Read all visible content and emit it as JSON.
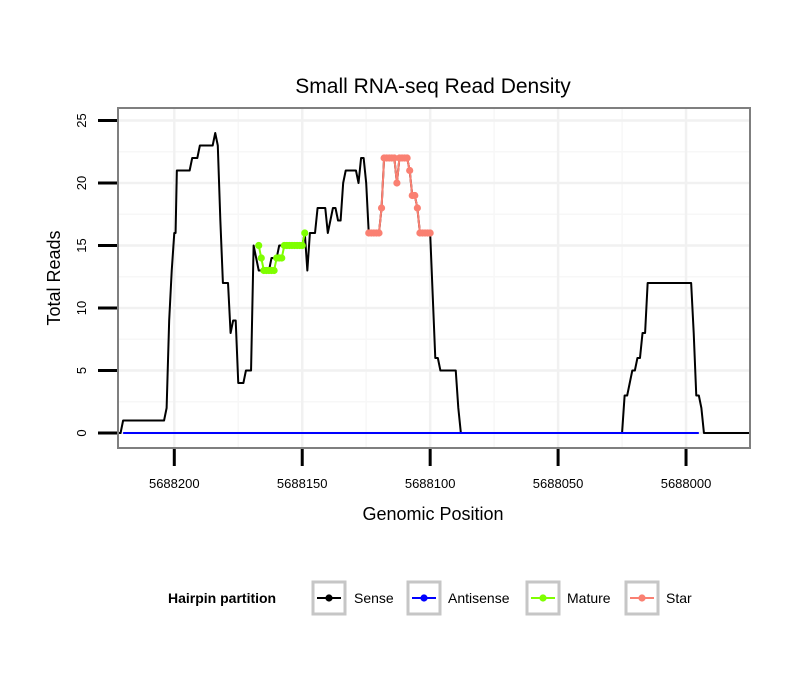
{
  "chart_data": {
    "type": "line",
    "title": "Small RNA-seq Read Density",
    "xlabel": "Genomic Position",
    "ylabel": "Total Reads",
    "x_reversed": true,
    "xlim": [
      5688222,
      5687975
    ],
    "ylim": [
      -1.2,
      26.0
    ],
    "x_ticks": [
      5688200,
      5688150,
      5688100,
      5688050,
      5688000
    ],
    "x_tick_labels": [
      "5688200",
      "5688150",
      "5688100",
      "5688050",
      "5688000"
    ],
    "y_ticks": [
      0,
      5,
      10,
      15,
      20,
      25
    ],
    "y_tick_labels": [
      "0",
      "5",
      "10",
      "15",
      "20",
      "25"
    ],
    "legend_title": "Hairpin partition",
    "legend_position": "bottom",
    "series": [
      {
        "name": "Sense",
        "color": "#000000",
        "markers": false,
        "points": [
          [
            5688225,
            0
          ],
          [
            5688221,
            0
          ],
          [
            5688220,
            1
          ],
          [
            5688204,
            1
          ],
          [
            5688203,
            2
          ],
          [
            5688202,
            9
          ],
          [
            5688201,
            13
          ],
          [
            5688200,
            16
          ],
          [
            5688199.5,
            16
          ],
          [
            5688199,
            21
          ],
          [
            5688194,
            21
          ],
          [
            5688193,
            22
          ],
          [
            5688191,
            22
          ],
          [
            5688190,
            23
          ],
          [
            5688185,
            23
          ],
          [
            5688184,
            24
          ],
          [
            5688183,
            23
          ],
          [
            5688182,
            17
          ],
          [
            5688181,
            12
          ],
          [
            5688179,
            12
          ],
          [
            5688178,
            8
          ],
          [
            5688177,
            9
          ],
          [
            5688176,
            9
          ],
          [
            5688175,
            4
          ],
          [
            5688173,
            4
          ],
          [
            5688172,
            5
          ],
          [
            5688170,
            5
          ],
          [
            5688169,
            15
          ],
          [
            5688168,
            14
          ],
          [
            5688167,
            13
          ],
          [
            5688163,
            13
          ],
          [
            5688162,
            14
          ],
          [
            5688160,
            14
          ],
          [
            5688159,
            15
          ],
          [
            5688150,
            15
          ],
          [
            5688149,
            16
          ],
          [
            5688148,
            13
          ],
          [
            5688147,
            16
          ],
          [
            5688145,
            16
          ],
          [
            5688144,
            18
          ],
          [
            5688141,
            18
          ],
          [
            5688140,
            16
          ],
          [
            5688139,
            17
          ],
          [
            5688138,
            18
          ],
          [
            5688137,
            18
          ],
          [
            5688136,
            17
          ],
          [
            5688135,
            17
          ],
          [
            5688134,
            20
          ],
          [
            5688133,
            21
          ],
          [
            5688129,
            21
          ],
          [
            5688128,
            20
          ],
          [
            5688127,
            22
          ],
          [
            5688126,
            22
          ],
          [
            5688125,
            20
          ],
          [
            5688124,
            16
          ],
          [
            5688120,
            16
          ],
          [
            5688119,
            18
          ],
          [
            5688118,
            22
          ],
          [
            5688114,
            22
          ],
          [
            5688113,
            20
          ],
          [
            5688112,
            22
          ],
          [
            5688109,
            22
          ],
          [
            5688108,
            21
          ],
          [
            5688107,
            19
          ],
          [
            5688106,
            19
          ],
          [
            5688105,
            18
          ],
          [
            5688104,
            16
          ],
          [
            5688100,
            16
          ],
          [
            5688099,
            11
          ],
          [
            5688098,
            6
          ],
          [
            5688097,
            6
          ],
          [
            5688096,
            5
          ],
          [
            5688090,
            5
          ],
          [
            5688089,
            2
          ],
          [
            5688088,
            0
          ],
          [
            5688025,
            0
          ],
          [
            5688024,
            3
          ],
          [
            5688023,
            3
          ],
          [
            5688022,
            4
          ],
          [
            5688021,
            5
          ],
          [
            5688020,
            5
          ],
          [
            5688019,
            6
          ],
          [
            5688018,
            6
          ],
          [
            5688017,
            8
          ],
          [
            5688016,
            8
          ],
          [
            5688015,
            12
          ],
          [
            5687998,
            12
          ],
          [
            5687997,
            8
          ],
          [
            5687996,
            3
          ],
          [
            5687995,
            3
          ],
          [
            5687994,
            2
          ],
          [
            5687993,
            0
          ],
          [
            5687975,
            0
          ]
        ]
      },
      {
        "name": "Antisense",
        "color": "#0000ff",
        "markers": false,
        "points": [
          [
            5688220,
            0
          ],
          [
            5687995,
            0
          ]
        ]
      },
      {
        "name": "Mature",
        "color": "#7fff00",
        "markers": true,
        "points": [
          [
            5688167,
            15
          ],
          [
            5688166,
            14
          ],
          [
            5688165,
            13
          ],
          [
            5688164,
            13
          ],
          [
            5688163,
            13
          ],
          [
            5688162,
            13
          ],
          [
            5688161,
            13
          ],
          [
            5688160,
            14
          ],
          [
            5688159,
            14
          ],
          [
            5688158,
            14
          ],
          [
            5688157,
            15
          ],
          [
            5688156,
            15
          ],
          [
            5688155,
            15
          ],
          [
            5688154,
            15
          ],
          [
            5688153,
            15
          ],
          [
            5688152,
            15
          ],
          [
            5688151,
            15
          ],
          [
            5688150,
            15
          ],
          [
            5688149,
            16
          ]
        ]
      },
      {
        "name": "Star",
        "color": "#fa8072",
        "markers": true,
        "points": [
          [
            5688124,
            16
          ],
          [
            5688123,
            16
          ],
          [
            5688122,
            16
          ],
          [
            5688121,
            16
          ],
          [
            5688120,
            16
          ],
          [
            5688119,
            18
          ],
          [
            5688118,
            22
          ],
          [
            5688117,
            22
          ],
          [
            5688116,
            22
          ],
          [
            5688115,
            22
          ],
          [
            5688114,
            22
          ],
          [
            5688113,
            20
          ],
          [
            5688112,
            22
          ],
          [
            5688111,
            22
          ],
          [
            5688110,
            22
          ],
          [
            5688109,
            22
          ],
          [
            5688108,
            21
          ],
          [
            5688107,
            19
          ],
          [
            5688106,
            19
          ],
          [
            5688105,
            18
          ],
          [
            5688104,
            16
          ],
          [
            5688103,
            16
          ],
          [
            5688102,
            16
          ],
          [
            5688101,
            16
          ],
          [
            5688100,
            16
          ]
        ]
      }
    ]
  }
}
